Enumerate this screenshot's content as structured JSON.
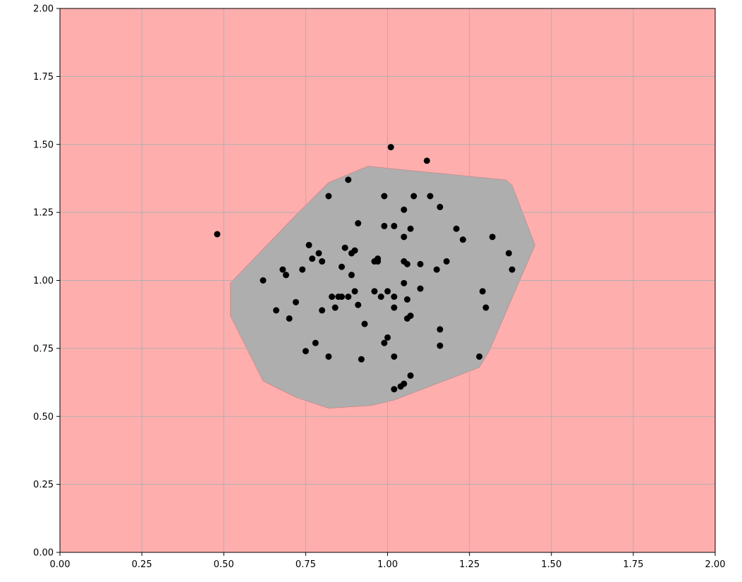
{
  "chart_data": {
    "type": "scatter",
    "title": "",
    "xlabel": "",
    "ylabel": "",
    "xlim": [
      0,
      2
    ],
    "ylim": [
      0,
      2
    ],
    "grid": true,
    "x_ticks": [
      "0.00",
      "0.25",
      "0.50",
      "0.75",
      "1.00",
      "1.25",
      "1.50",
      "1.75",
      "2.00"
    ],
    "y_ticks": [
      "0.00",
      "0.25",
      "0.50",
      "0.75",
      "1.00",
      "1.25",
      "1.50",
      "1.75",
      "2.00"
    ],
    "colors": {
      "outside_region": "#ffaeae",
      "inside_region": "#aeaeae",
      "points": "#000000",
      "grid": "#b0b0b0"
    },
    "decision_region": [
      [
        0.52,
        0.99
      ],
      [
        0.52,
        0.87
      ],
      [
        0.62,
        0.63
      ],
      [
        0.72,
        0.57
      ],
      [
        0.82,
        0.53
      ],
      [
        0.95,
        0.54
      ],
      [
        1.02,
        0.56
      ],
      [
        1.28,
        0.68
      ],
      [
        1.31,
        0.74
      ],
      [
        1.45,
        1.13
      ],
      [
        1.38,
        1.35
      ],
      [
        1.36,
        1.37
      ],
      [
        1.02,
        1.41
      ],
      [
        0.94,
        1.42
      ],
      [
        0.82,
        1.36
      ],
      [
        0.72,
        1.24
      ]
    ],
    "series": [
      {
        "points": [
          [
            0.48,
            1.17
          ],
          [
            0.62,
            1.0
          ],
          [
            0.66,
            0.89
          ],
          [
            0.68,
            1.04
          ],
          [
            0.69,
            1.02
          ],
          [
            0.7,
            0.86
          ],
          [
            0.72,
            0.92
          ],
          [
            0.74,
            1.04
          ],
          [
            0.75,
            0.74
          ],
          [
            0.76,
            1.13
          ],
          [
            0.77,
            1.08
          ],
          [
            0.78,
            0.77
          ],
          [
            0.79,
            1.1
          ],
          [
            0.8,
            1.07
          ],
          [
            0.8,
            0.89
          ],
          [
            0.82,
            1.31
          ],
          [
            0.82,
            0.72
          ],
          [
            0.83,
            0.94
          ],
          [
            0.84,
            0.9
          ],
          [
            0.85,
            0.94
          ],
          [
            0.86,
            0.94
          ],
          [
            0.86,
            1.05
          ],
          [
            0.87,
            1.12
          ],
          [
            0.88,
            0.94
          ],
          [
            0.88,
            1.37
          ],
          [
            0.89,
            1.1
          ],
          [
            0.89,
            1.02
          ],
          [
            0.9,
            1.11
          ],
          [
            0.9,
            0.96
          ],
          [
            0.91,
            0.91
          ],
          [
            0.91,
            1.21
          ],
          [
            0.92,
            0.71
          ],
          [
            0.93,
            0.84
          ],
          [
            0.96,
            0.96
          ],
          [
            0.96,
            1.07
          ],
          [
            0.97,
            1.08
          ],
          [
            0.97,
            1.07
          ],
          [
            0.98,
            0.94
          ],
          [
            0.99,
            1.2
          ],
          [
            0.99,
            0.77
          ],
          [
            0.99,
            1.31
          ],
          [
            1.0,
            0.79
          ],
          [
            1.0,
            0.96
          ],
          [
            1.01,
            1.49
          ],
          [
            1.02,
            0.72
          ],
          [
            1.02,
            0.94
          ],
          [
            1.02,
            0.9
          ],
          [
            1.02,
            1.2
          ],
          [
            1.02,
            0.6
          ],
          [
            1.04,
            0.61
          ],
          [
            1.05,
            1.26
          ],
          [
            1.05,
            0.62
          ],
          [
            1.05,
            1.16
          ],
          [
            1.05,
            0.99
          ],
          [
            1.05,
            1.07
          ],
          [
            1.06,
            1.06
          ],
          [
            1.06,
            0.86
          ],
          [
            1.06,
            0.93
          ],
          [
            1.07,
            1.19
          ],
          [
            1.07,
            0.65
          ],
          [
            1.07,
            0.87
          ],
          [
            1.08,
            1.31
          ],
          [
            1.1,
            0.97
          ],
          [
            1.1,
            1.06
          ],
          [
            1.12,
            1.44
          ],
          [
            1.13,
            1.31
          ],
          [
            1.15,
            1.04
          ],
          [
            1.16,
            0.82
          ],
          [
            1.16,
            1.27
          ],
          [
            1.16,
            0.76
          ],
          [
            1.18,
            1.07
          ],
          [
            1.21,
            1.19
          ],
          [
            1.23,
            1.15
          ],
          [
            1.28,
            0.72
          ],
          [
            1.29,
            0.96
          ],
          [
            1.3,
            0.9
          ],
          [
            1.32,
            1.16
          ],
          [
            1.37,
            1.1
          ],
          [
            1.38,
            1.04
          ]
        ]
      }
    ]
  }
}
